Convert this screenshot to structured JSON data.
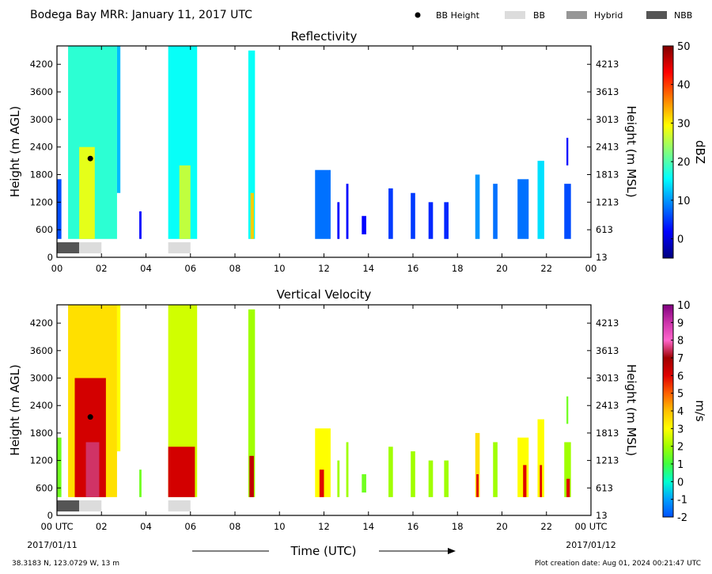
{
  "header": {
    "title": "Bodega Bay MRR:  January 11, 2017 UTC",
    "legend": [
      {
        "label": "BB Height",
        "kind": "dot",
        "color": "#000000"
      },
      {
        "label": "BB",
        "kind": "box",
        "color": "#dcdcdc"
      },
      {
        "label": "Hybrid",
        "kind": "box",
        "color": "#969696"
      },
      {
        "label": "NBB",
        "kind": "box",
        "color": "#555555"
      }
    ]
  },
  "footer": {
    "location": "38.3183 N, 123.0729 W, 13 m",
    "creation": "Plot creation date: Aug 01, 2024 00:21:47 UTC",
    "xlabel": "Time (UTC)",
    "start_tick": "00 UTC",
    "end_tick": "00 UTC",
    "start_date": "2017/01/11",
    "end_date": "2017/01/12"
  },
  "chart_data": [
    {
      "type": "heatmap",
      "title": "Reflectivity",
      "ylabel": "Height (m AGL)",
      "ylabel_right": "Height (m MSL)",
      "xlim": [
        0,
        24
      ],
      "ylim": [
        0,
        4600
      ],
      "x_ticks": [
        "00",
        "02",
        "04",
        "06",
        "08",
        "10",
        "12",
        "14",
        "16",
        "18",
        "20",
        "22",
        "00"
      ],
      "y_ticks": [
        0,
        600,
        1200,
        1800,
        2400,
        3000,
        3600,
        4200
      ],
      "y_ticks_right": [
        13,
        613,
        1213,
        1813,
        2413,
        3013,
        3613,
        4213
      ],
      "colorbar": {
        "label": "dBZ",
        "min": -5,
        "max": 50,
        "ticks": [
          0,
          10,
          20,
          30,
          40,
          50
        ],
        "colors": [
          "#00007f",
          "#0000ff",
          "#007fff",
          "#00ffff",
          "#7fff7f",
          "#ffff00",
          "#ff7f00",
          "#ff0000",
          "#7f0000"
        ]
      },
      "bb_height": [
        {
          "time": 1.5,
          "height": 2150
        }
      ],
      "bb_bands": [
        {
          "start": 0.0,
          "end": 1.0,
          "type": "NBB"
        },
        {
          "start": 1.0,
          "end": 2.0,
          "type": "BB"
        },
        {
          "start": 5.0,
          "end": 6.0,
          "type": "BB"
        }
      ],
      "echoes": [
        {
          "start": 0.0,
          "end": 0.2,
          "bottom": 400,
          "top": 1700,
          "value": 6
        },
        {
          "start": 0.5,
          "end": 2.7,
          "bottom": 400,
          "top": 4600,
          "value": 18
        },
        {
          "start": 1.0,
          "end": 1.7,
          "bottom": 400,
          "top": 2400,
          "value": 28
        },
        {
          "start": 2.7,
          "end": 2.85,
          "bottom": 1400,
          "top": 4600,
          "value": 12
        },
        {
          "start": 3.7,
          "end": 3.8,
          "bottom": 400,
          "top": 1000,
          "value": 2
        },
        {
          "start": 5.0,
          "end": 6.3,
          "bottom": 400,
          "top": 4600,
          "value": 16
        },
        {
          "start": 5.5,
          "end": 6.0,
          "bottom": 400,
          "top": 2000,
          "value": 26
        },
        {
          "start": 8.6,
          "end": 8.9,
          "bottom": 400,
          "top": 4500,
          "value": 16
        },
        {
          "start": 8.7,
          "end": 8.85,
          "bottom": 400,
          "top": 1400,
          "value": 32
        },
        {
          "start": 11.6,
          "end": 12.3,
          "bottom": 400,
          "top": 1900,
          "value": 8
        },
        {
          "start": 12.6,
          "end": 12.7,
          "bottom": 400,
          "top": 1200,
          "value": 2
        },
        {
          "start": 13.0,
          "end": 13.1,
          "bottom": 400,
          "top": 1600,
          "value": 2
        },
        {
          "start": 13.7,
          "end": 13.9,
          "bottom": 500,
          "top": 900,
          "value": 2
        },
        {
          "start": 14.9,
          "end": 15.1,
          "bottom": 400,
          "top": 1500,
          "value": 5
        },
        {
          "start": 15.9,
          "end": 16.1,
          "bottom": 400,
          "top": 1400,
          "value": 5
        },
        {
          "start": 16.7,
          "end": 16.9,
          "bottom": 400,
          "top": 1200,
          "value": 4
        },
        {
          "start": 17.4,
          "end": 17.6,
          "bottom": 400,
          "top": 1200,
          "value": 4
        },
        {
          "start": 18.8,
          "end": 19.0,
          "bottom": 400,
          "top": 1800,
          "value": 10
        },
        {
          "start": 19.6,
          "end": 19.8,
          "bottom": 400,
          "top": 1600,
          "value": 8
        },
        {
          "start": 20.7,
          "end": 21.2,
          "bottom": 400,
          "top": 1700,
          "value": 8
        },
        {
          "start": 21.6,
          "end": 21.9,
          "bottom": 400,
          "top": 2100,
          "value": 14
        },
        {
          "start": 22.8,
          "end": 23.1,
          "bottom": 400,
          "top": 1600,
          "value": 6
        },
        {
          "start": 22.9,
          "end": 22.98,
          "bottom": 2000,
          "top": 2600,
          "value": 2
        }
      ]
    },
    {
      "type": "heatmap",
      "title": "Vertical Velocity",
      "ylabel": "Height (m AGL)",
      "ylabel_right": "Height (m MSL)",
      "xlim": [
        0,
        24
      ],
      "ylim": [
        0,
        4600
      ],
      "x_ticks": [
        "00 UTC",
        "02",
        "04",
        "06",
        "08",
        "10",
        "12",
        "14",
        "16",
        "18",
        "20",
        "22",
        "00 UTC"
      ],
      "y_ticks": [
        0,
        600,
        1200,
        1800,
        2400,
        3000,
        3600,
        4200
      ],
      "y_ticks_right": [
        13,
        613,
        1213,
        1813,
        2413,
        3013,
        3613,
        4213
      ],
      "colorbar": {
        "label": "m/s",
        "min": -2,
        "max": 10,
        "ticks": [
          -2,
          -1,
          0,
          1,
          2,
          3,
          4,
          5,
          6,
          7,
          8,
          9,
          10
        ],
        "colors": [
          "#0050ff",
          "#00a0ff",
          "#00ffd0",
          "#40ff40",
          "#a0ff00",
          "#ffff00",
          "#ffc000",
          "#ff6000",
          "#e00000",
          "#a00000",
          "#ff66cc",
          "#cc33aa",
          "#800080"
        ]
      },
      "bb_height": [
        {
          "time": 1.5,
          "height": 2150
        }
      ],
      "bb_bands": [
        {
          "start": 0.0,
          "end": 1.0,
          "type": "NBB"
        },
        {
          "start": 1.0,
          "end": 2.0,
          "type": "BB"
        },
        {
          "start": 5.0,
          "end": 6.0,
          "type": "BB"
        }
      ],
      "echoes": [
        {
          "start": 0.0,
          "end": 0.2,
          "bottom": 400,
          "top": 1700,
          "value": 1.5
        },
        {
          "start": 0.5,
          "end": 2.7,
          "bottom": 400,
          "top": 4600,
          "value": 3.5
        },
        {
          "start": 0.8,
          "end": 2.2,
          "bottom": 400,
          "top": 3000,
          "value": 6.2
        },
        {
          "start": 1.3,
          "end": 1.9,
          "bottom": 400,
          "top": 1600,
          "value": 7.5
        },
        {
          "start": 2.7,
          "end": 2.85,
          "bottom": 1400,
          "top": 4600,
          "value": 3
        },
        {
          "start": 3.7,
          "end": 3.8,
          "bottom": 400,
          "top": 1000,
          "value": 1.5
        },
        {
          "start": 5.0,
          "end": 6.3,
          "bottom": 400,
          "top": 4600,
          "value": 2.5
        },
        {
          "start": 5.0,
          "end": 6.2,
          "bottom": 400,
          "top": 1500,
          "value": 6.2
        },
        {
          "start": 8.6,
          "end": 8.9,
          "bottom": 400,
          "top": 4500,
          "value": 2
        },
        {
          "start": 8.65,
          "end": 8.85,
          "bottom": 400,
          "top": 1300,
          "value": 6.5
        },
        {
          "start": 11.6,
          "end": 12.3,
          "bottom": 400,
          "top": 1900,
          "value": 3
        },
        {
          "start": 11.8,
          "end": 12.0,
          "bottom": 400,
          "top": 1000,
          "value": 6
        },
        {
          "start": 12.6,
          "end": 12.7,
          "bottom": 400,
          "top": 1200,
          "value": 2
        },
        {
          "start": 13.0,
          "end": 13.1,
          "bottom": 400,
          "top": 1600,
          "value": 2
        },
        {
          "start": 13.7,
          "end": 13.9,
          "bottom": 500,
          "top": 900,
          "value": 1.5
        },
        {
          "start": 14.9,
          "end": 15.1,
          "bottom": 400,
          "top": 1500,
          "value": 2
        },
        {
          "start": 15.9,
          "end": 16.1,
          "bottom": 400,
          "top": 1400,
          "value": 2
        },
        {
          "start": 16.7,
          "end": 16.9,
          "bottom": 400,
          "top": 1200,
          "value": 2
        },
        {
          "start": 17.4,
          "end": 17.6,
          "bottom": 400,
          "top": 1200,
          "value": 2
        },
        {
          "start": 18.8,
          "end": 19.0,
          "bottom": 400,
          "top": 1800,
          "value": 3.5
        },
        {
          "start": 18.85,
          "end": 18.95,
          "bottom": 400,
          "top": 900,
          "value": 6
        },
        {
          "start": 19.6,
          "end": 19.8,
          "bottom": 400,
          "top": 1600,
          "value": 2
        },
        {
          "start": 20.7,
          "end": 21.2,
          "bottom": 400,
          "top": 1700,
          "value": 3
        },
        {
          "start": 20.95,
          "end": 21.1,
          "bottom": 400,
          "top": 1100,
          "value": 6
        },
        {
          "start": 21.6,
          "end": 21.9,
          "bottom": 400,
          "top": 2100,
          "value": 3
        },
        {
          "start": 21.7,
          "end": 21.8,
          "bottom": 400,
          "top": 1100,
          "value": 6
        },
        {
          "start": 22.8,
          "end": 23.1,
          "bottom": 400,
          "top": 1600,
          "value": 2
        },
        {
          "start": 22.9,
          "end": 23.05,
          "bottom": 400,
          "top": 800,
          "value": 6
        },
        {
          "start": 22.9,
          "end": 22.98,
          "bottom": 2000,
          "top": 2600,
          "value": 1.5
        }
      ]
    }
  ]
}
